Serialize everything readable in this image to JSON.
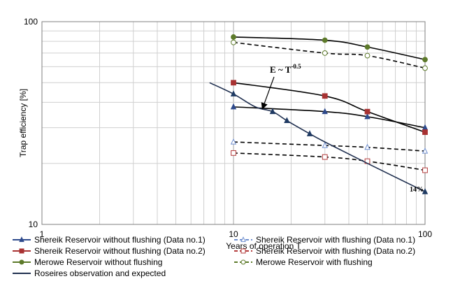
{
  "chart_data": {
    "type": "line",
    "xlabel": "Years of operation T",
    "ylabel": "Trap efficiency [%]",
    "xscale": "log",
    "yscale": "log",
    "xlim": [
      1,
      100
    ],
    "ylim": [
      10,
      100
    ],
    "x_ticks": [
      "1",
      "10",
      "100"
    ],
    "y_ticks": [
      "10",
      "100"
    ],
    "grid": true,
    "legend_position": "bottom",
    "annotations": [
      {
        "base": "E ~ T",
        "exp": "-0.5",
        "text": "E ~ T-0.5"
      },
      {
        "text": "14%"
      }
    ],
    "series": [
      {
        "name": "Shereik Reservoir without flushing (Data no.1)",
        "color": "#2e4a8c",
        "marker": "triangle",
        "filled": true,
        "dash": false,
        "x": [
          10,
          30,
          50,
          100
        ],
        "y": [
          38,
          36,
          34,
          30
        ]
      },
      {
        "name": "Shereik Reservoir with flushing (Data no.1)",
        "color": "#6f8fcf",
        "marker": "triangle",
        "filled": false,
        "dash": true,
        "x": [
          10,
          30,
          50,
          100
        ],
        "y": [
          25.5,
          24.5,
          24,
          23
        ]
      },
      {
        "name": "Shereik Reservoir without flushing (Data no.2)",
        "color": "#a83232",
        "marker": "square",
        "filled": true,
        "dash": false,
        "x": [
          10,
          30,
          50,
          100
        ],
        "y": [
          50,
          43,
          36,
          28.5
        ]
      },
      {
        "name": "Shereik Reservoir with flushing (Data no.2)",
        "color": "#b33a3a",
        "marker": "square",
        "filled": false,
        "dash": true,
        "x": [
          10,
          30,
          50,
          100
        ],
        "y": [
          22.5,
          21.5,
          20.5,
          18.5
        ]
      },
      {
        "name": "Merowe Reservoir without flushing",
        "color": "#5d7a2a",
        "marker": "circle",
        "filled": true,
        "dash": false,
        "x": [
          10,
          30,
          50,
          100
        ],
        "y": [
          84,
          81,
          75,
          65
        ]
      },
      {
        "name": "Merowe Reservoir with flushing",
        "color": "#5d7a2a",
        "marker": "circle",
        "filled": false,
        "dash": true,
        "x": [
          10,
          30,
          50,
          100
        ],
        "y": [
          79,
          70,
          68,
          59
        ]
      },
      {
        "name": "Roseires observation and expected",
        "color": "#1f3a63",
        "marker": "triangle",
        "filled": true,
        "dash": false,
        "x": [
          7.5,
          10,
          13,
          16,
          19,
          25,
          30,
          50,
          100
        ],
        "y": [
          50,
          44,
          38,
          36,
          32.5,
          28,
          25.5,
          20,
          14.5
        ],
        "marker_x": [
          10,
          16,
          19,
          25,
          100
        ],
        "marker_y": [
          44,
          36,
          32.5,
          28,
          14.5
        ]
      }
    ]
  }
}
